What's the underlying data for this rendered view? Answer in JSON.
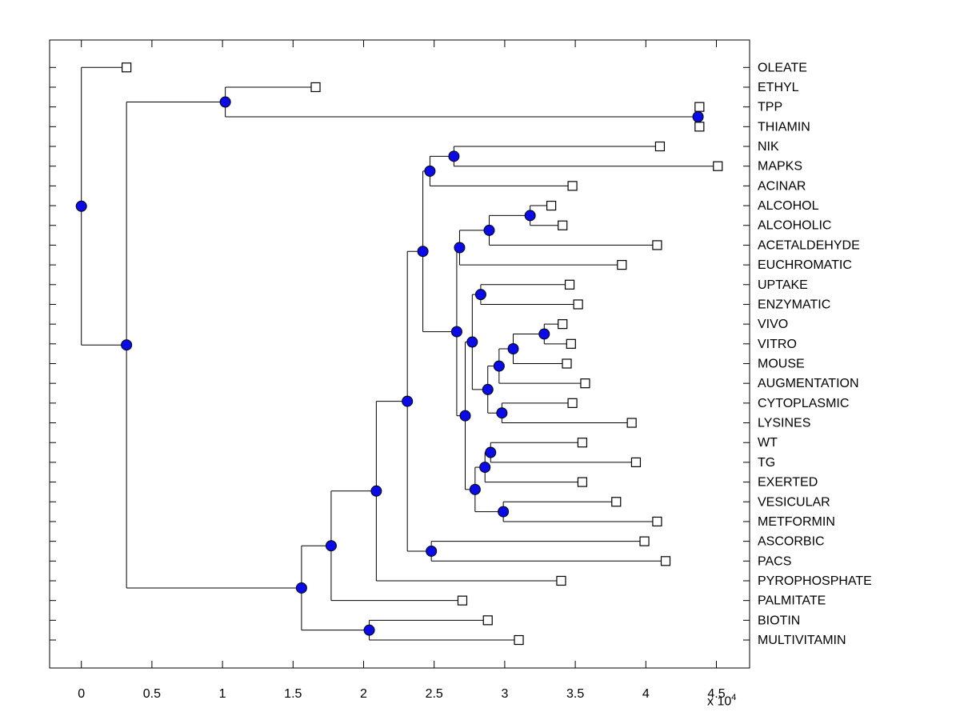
{
  "chart_data": {
    "type": "dendrogram",
    "title": "",
    "orientation": "left-to-right",
    "legend": "none",
    "grid": false,
    "x_axis": {
      "tick_labels": [
        "0",
        "0.5",
        "1",
        "1.5",
        "2",
        "2.5",
        "3",
        "3.5",
        "4",
        "4.5"
      ],
      "tick_values": [
        0,
        0.5,
        1,
        1.5,
        2,
        2.5,
        3,
        3.5,
        4,
        4.5
      ],
      "xlim": [
        -0.225,
        4.735
      ],
      "unit_multiplier": {
        "prefix": "x 10",
        "base": "10",
        "exponent": "4"
      }
    },
    "marker_styles": {
      "leaf": "open-square",
      "branch": "filled-circle"
    },
    "colors": {
      "line": "#000000",
      "branch_node_fill": "#0b0be8",
      "branch_node_edge": "#000000",
      "leaf_marker_fill": "#ffffff",
      "leaf_marker_edge": "#000000",
      "background": "#ffffff",
      "text": "#000000"
    },
    "leaves": [
      {
        "id": "L1",
        "name": "OLEATE",
        "tip_x": 0.32
      },
      {
        "id": "L2",
        "name": "ETHYL",
        "tip_x": 1.66
      },
      {
        "id": "L3",
        "name": "TPP",
        "tip_x": 4.38
      },
      {
        "id": "L4",
        "name": "THIAMIN",
        "tip_x": 4.38
      },
      {
        "id": "L5",
        "name": "NIK",
        "tip_x": 4.1
      },
      {
        "id": "L6",
        "name": "MAPKS",
        "tip_x": 4.51
      },
      {
        "id": "L7",
        "name": "ACINAR",
        "tip_x": 3.48
      },
      {
        "id": "L8",
        "name": "ALCOHOL",
        "tip_x": 3.33
      },
      {
        "id": "L9",
        "name": "ALCOHOLIC",
        "tip_x": 3.41
      },
      {
        "id": "L10",
        "name": "ACETALDEHYDE",
        "tip_x": 4.08
      },
      {
        "id": "L11",
        "name": "EUCHROMATIC",
        "tip_x": 3.83
      },
      {
        "id": "L12",
        "name": "UPTAKE",
        "tip_x": 3.46
      },
      {
        "id": "L13",
        "name": "ENZYMATIC",
        "tip_x": 3.52
      },
      {
        "id": "L14",
        "name": "VIVO",
        "tip_x": 3.41
      },
      {
        "id": "L15",
        "name": "VITRO",
        "tip_x": 3.47
      },
      {
        "id": "L16",
        "name": "MOUSE",
        "tip_x": 3.44
      },
      {
        "id": "L17",
        "name": "AUGMENTATION",
        "tip_x": 3.57
      },
      {
        "id": "L18",
        "name": "CYTOPLASMIC",
        "tip_x": 3.48
      },
      {
        "id": "L19",
        "name": "LYSINES",
        "tip_x": 3.9
      },
      {
        "id": "L20",
        "name": "WT",
        "tip_x": 3.55
      },
      {
        "id": "L21",
        "name": "TG",
        "tip_x": 3.93
      },
      {
        "id": "L22",
        "name": "EXERTED",
        "tip_x": 3.55
      },
      {
        "id": "L23",
        "name": "VESICULAR",
        "tip_x": 3.79
      },
      {
        "id": "L24",
        "name": "METFORMIN",
        "tip_x": 4.08
      },
      {
        "id": "L25",
        "name": "ASCORBIC",
        "tip_x": 3.99
      },
      {
        "id": "L26",
        "name": "PACS",
        "tip_x": 4.14
      },
      {
        "id": "L27",
        "name": "PYROPHOSPHATE",
        "tip_x": 3.4
      },
      {
        "id": "L28",
        "name": "PALMITATE",
        "tip_x": 2.7
      },
      {
        "id": "L29",
        "name": "BIOTIN",
        "tip_x": 2.88
      },
      {
        "id": "L30",
        "name": "MULTIVITAMIN",
        "tip_x": 3.1
      }
    ],
    "nodes": [
      {
        "id": "root",
        "x": 0.0,
        "children": [
          "L1",
          "n3"
        ]
      },
      {
        "id": "n3",
        "x": 0.32,
        "children": [
          "n1",
          "nV"
        ]
      },
      {
        "id": "n1",
        "x": 1.02,
        "children": [
          "L2",
          "n4"
        ]
      },
      {
        "id": "n4",
        "x": 4.37,
        "children": [
          "L3",
          "L4"
        ]
      },
      {
        "id": "nV",
        "x": 1.56,
        "children": [
          "nU",
          "nS"
        ]
      },
      {
        "id": "nU",
        "x": 1.77,
        "children": [
          "nT",
          "L28"
        ]
      },
      {
        "id": "nT",
        "x": 2.09,
        "children": [
          "nQ",
          "L27"
        ]
      },
      {
        "id": "nQ",
        "x": 2.31,
        "children": [
          "n7",
          "nR"
        ]
      },
      {
        "id": "n7",
        "x": 2.42,
        "children": [
          "n6",
          "nA"
        ]
      },
      {
        "id": "n6",
        "x": 2.47,
        "children": [
          "n5",
          "L7"
        ]
      },
      {
        "id": "n5",
        "x": 2.64,
        "children": [
          "L5",
          "L6"
        ]
      },
      {
        "id": "nA",
        "x": 2.66,
        "children": [
          "n10",
          "nH"
        ]
      },
      {
        "id": "n10",
        "x": 2.68,
        "children": [
          "n9",
          "L11"
        ]
      },
      {
        "id": "n9",
        "x": 2.89,
        "children": [
          "n8",
          "L10"
        ]
      },
      {
        "id": "n8",
        "x": 3.18,
        "children": [
          "L8",
          "L9"
        ]
      },
      {
        "id": "nH",
        "x": 2.72,
        "children": [
          "nB",
          "n22"
        ]
      },
      {
        "id": "nB",
        "x": 2.77,
        "children": [
          "n11",
          "n17"
        ]
      },
      {
        "id": "n11",
        "x": 2.83,
        "children": [
          "L12",
          "L13"
        ]
      },
      {
        "id": "n17",
        "x": 2.88,
        "children": [
          "n16",
          "n18"
        ]
      },
      {
        "id": "n16",
        "x": 2.96,
        "children": [
          "n15",
          "L17"
        ]
      },
      {
        "id": "n15",
        "x": 3.06,
        "children": [
          "n14",
          "L16"
        ]
      },
      {
        "id": "n14",
        "x": 3.28,
        "children": [
          "L14",
          "L15"
        ]
      },
      {
        "id": "n18",
        "x": 2.98,
        "children": [
          "L18",
          "L19"
        ]
      },
      {
        "id": "n22",
        "x": 2.79,
        "children": [
          "n20",
          "n21"
        ]
      },
      {
        "id": "n20",
        "x": 2.86,
        "children": [
          "n19",
          "L22"
        ]
      },
      {
        "id": "n19",
        "x": 2.9,
        "children": [
          "L20",
          "L21"
        ]
      },
      {
        "id": "n21",
        "x": 2.99,
        "children": [
          "L23",
          "L24"
        ]
      },
      {
        "id": "nR",
        "x": 2.48,
        "children": [
          "L25",
          "L26"
        ]
      },
      {
        "id": "nS",
        "x": 2.04,
        "children": [
          "L29",
          "L30"
        ]
      }
    ]
  }
}
